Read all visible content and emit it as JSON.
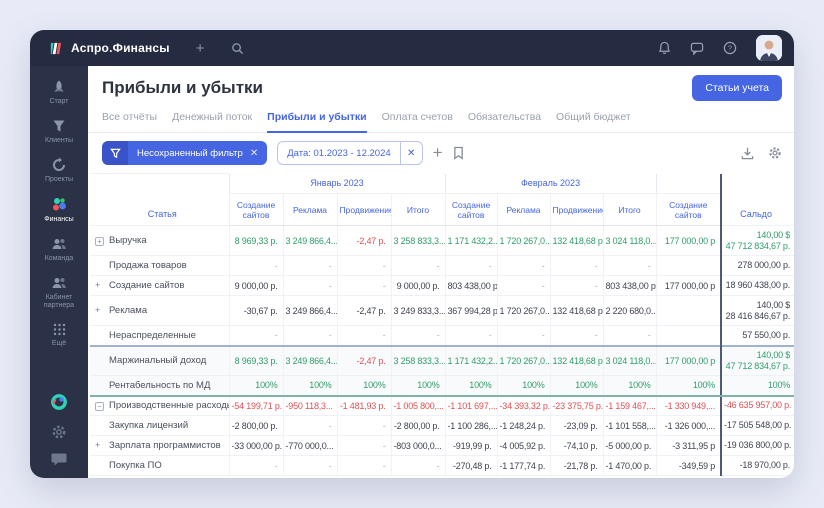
{
  "colors": {
    "accent": "#4565e2",
    "green": "#2f9e68",
    "red": "#e04f55",
    "topbar_bg": "#252b40",
    "sidebar_bg": "#2b3147"
  },
  "topbar": {
    "app_name": "Аспро.Финансы"
  },
  "sidebar": {
    "items": [
      {
        "label": "Старт"
      },
      {
        "label": "Клиенты"
      },
      {
        "label": "Проекты"
      },
      {
        "label": "Финансы",
        "active": true
      },
      {
        "label": "Команда"
      },
      {
        "label": "Кабинет партнера"
      },
      {
        "label": "Ещё"
      }
    ]
  },
  "page": {
    "title": "Прибыли и убытки",
    "action_button": "Статьи учета"
  },
  "tabs": [
    {
      "label": "Все отчёты"
    },
    {
      "label": "Денежный поток"
    },
    {
      "label": "Прибыли и убытки",
      "active": true
    },
    {
      "label": "Оплата счетов"
    },
    {
      "label": "Обязательства"
    },
    {
      "label": "Общий бюджет"
    }
  ],
  "filter": {
    "unsaved_label": "Несохраненный фильтр",
    "date_chip": "Дата: 01.2023 - 12.2024"
  },
  "table": {
    "article_header": "Статья",
    "saldo_header": "Сальдо",
    "month_groups": [
      {
        "label": "Январь 2023",
        "cols": 4
      },
      {
        "label": "Февраль 2023",
        "cols": 4
      },
      {
        "label": "",
        "cols": 1
      }
    ],
    "value_headers": [
      "Создание сайтов",
      "Реклама",
      "Продвижение",
      "Итого",
      "Создание сайтов",
      "Реклама",
      "Продвижение",
      "Итого",
      "Создание сайтов"
    ],
    "rows": [
      {
        "label": "Выручка",
        "icon": "expand-box",
        "tone": "green",
        "tall": true,
        "cells": [
          "8 969,33 р.",
          "3 249 866,4...",
          {
            "t": "-2,47 р.",
            "c": "red"
          },
          "3 258 833,3...",
          "1 171 432,2...",
          "1 720 267,0...",
          "132 418,68 р.",
          "3 024 118,0...",
          "177 000,00 р"
        ],
        "saldo": [
          "140,00 $",
          "47 712 834,67 р."
        ],
        "saldo_tone": "green"
      },
      {
        "label": "Продажа товаров",
        "icon": "none",
        "tone": "dark",
        "cells": [
          "-",
          "-",
          "-",
          "-",
          "-",
          "-",
          "-",
          "-",
          ""
        ],
        "saldo": [
          "278 000,00 р."
        ],
        "saldo_tone": "dark"
      },
      {
        "label": "Создание сайтов",
        "icon": "plus",
        "tone": "dark",
        "cells": [
          "9 000,00 р.",
          "-",
          "-",
          "9 000,00 р.",
          "803 438,00 р.",
          "-",
          "-",
          "803 438,00 р.",
          "177 000,00 р"
        ],
        "saldo": [
          "18 960 438,00 р."
        ],
        "saldo_tone": "dark"
      },
      {
        "label": "Реклама",
        "icon": "plus",
        "tone": "dark",
        "tall": true,
        "cells": [
          "-30,67 р.",
          "3 249 866,4...",
          "-2,47 р.",
          "3 249 833,3...",
          "367 994,28 р.",
          "1 720 267,0...",
          "132 418,68 р.",
          "2 220 680,0...",
          ""
        ],
        "saldo": [
          "140,00 $",
          "28 416 846,67 р."
        ],
        "saldo_tone": "dark"
      },
      {
        "label": "Нераспределенные",
        "icon": "none",
        "tone": "dark",
        "cells": [
          "-",
          "-",
          "-",
          "-",
          "-",
          "-",
          "-",
          "-",
          ""
        ],
        "saldo": [
          "57 550,00 р."
        ],
        "saldo_tone": "dark"
      },
      {
        "label": "Маржинальный доход",
        "icon": "none",
        "tone": "green",
        "tall": true,
        "highlight": true,
        "sep_top": true,
        "cells": [
          "8 969,33 р.",
          "3 249 866,4...",
          {
            "t": "-2,47 р.",
            "c": "red"
          },
          "3 258 833,3...",
          "1 171 432,2...",
          "1 720 267,0...",
          "132 418,68 р.",
          "3 024 118,0...",
          "177 000,00 р"
        ],
        "saldo": [
          "140,00 $",
          "47 712 834,67 р."
        ],
        "saldo_tone": "green"
      },
      {
        "label": "Рентабельность по МД",
        "icon": "none",
        "tone": "green",
        "highlight": true,
        "sep_bot": true,
        "cells": [
          "100%",
          "100%",
          "100%",
          "100%",
          "100%",
          "100%",
          "100%",
          "100%",
          "100%"
        ],
        "saldo": [
          "100%"
        ],
        "saldo_tone": "green"
      },
      {
        "label": "Производственные расходы",
        "icon": "collapse-box",
        "tone": "red",
        "cells": [
          "-54 199,71 р.",
          "-950 118,3...",
          "-1 481,93 р.",
          "-1 005 800,...",
          "-1 101 697,...",
          "-34 393,32 р.",
          "-23 375,75 р.",
          "-1 159 467,...",
          "-1 330 949,..."
        ],
        "saldo": [
          "-46 635 957,00 р."
        ],
        "saldo_tone": "red"
      },
      {
        "label": "Закупка лицензий",
        "icon": "none",
        "tone": "dark",
        "cells": [
          "-2 800,00 р.",
          "-",
          "-",
          "-2 800,00 р.",
          "-1 100 286,...",
          "-1 248,24 р.",
          "-23,09 р.",
          "-1 101 558,...",
          "-1 326 000,..."
        ],
        "saldo": [
          "-17 505 548,00 р."
        ],
        "saldo_tone": "dark"
      },
      {
        "label": "Зарплата программистов",
        "icon": "plus",
        "tone": "dark",
        "cells": [
          "-33 000,00 р.",
          "-770 000,0...",
          "-",
          "-803 000,0...",
          "-919,99 р.",
          "-4 005,92 р.",
          "-74,10 р.",
          "-5 000,00 р.",
          "-3 311,95 р"
        ],
        "saldo": [
          "-19 036 800,00 р."
        ],
        "saldo_tone": "dark"
      },
      {
        "label": "Покупка ПО",
        "icon": "none",
        "tone": "dark",
        "cells": [
          "-",
          "-",
          "-",
          "-",
          "-270,48 р.",
          "-1 177,74 р.",
          "-21,78 р.",
          "-1 470,00 р.",
          "-349,59 р"
        ],
        "saldo": [
          "-18 970,00 р."
        ],
        "saldo_tone": "dark"
      }
    ]
  }
}
